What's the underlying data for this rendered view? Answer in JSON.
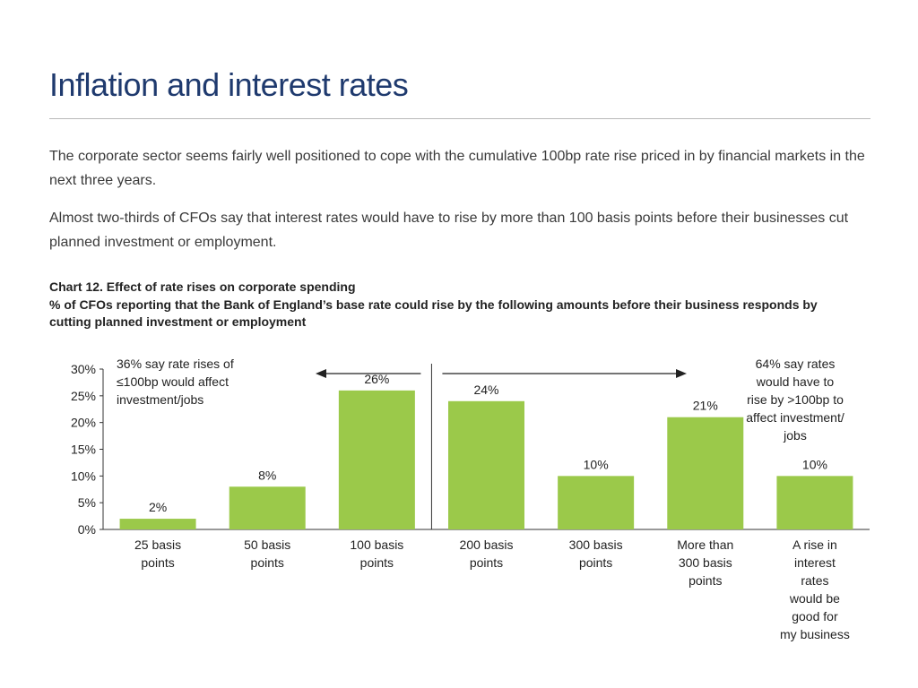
{
  "page": {
    "title": "Inflation and interest rates",
    "paragraphs": [
      "The corporate sector seems fairly well positioned to cope with the cumulative 100bp rate rise priced in by financial markets in the next three years.",
      "Almost two-thirds of CFOs say that interest rates would have to rise by more than 100 basis points before their businesses cut planned investment or employment."
    ]
  },
  "chart_data": {
    "type": "bar",
    "title": "Chart 12. Effect of rate rises on corporate spending",
    "subtitle": "% of CFOs reporting that the Bank of England’s base rate could rise by the following amounts before their business responds by cutting planned investment or employment",
    "categories": [
      [
        "25 basis",
        "points"
      ],
      [
        "50 basis",
        "points"
      ],
      [
        "100 basis",
        "points"
      ],
      [
        "200 basis",
        "points"
      ],
      [
        "300 basis",
        "points"
      ],
      [
        "More than",
        "300 basis",
        "points"
      ],
      [
        "A rise in",
        "interest",
        "rates",
        "would be",
        "good for",
        "my business"
      ]
    ],
    "values": [
      2,
      8,
      26,
      24,
      10,
      21,
      10
    ],
    "value_labels": [
      "2%",
      "8%",
      "26%",
      "24%",
      "10%",
      "21%",
      "10%"
    ],
    "ylim": [
      0,
      30
    ],
    "yticks": [
      0,
      5,
      10,
      15,
      20,
      25,
      30
    ],
    "ytick_labels": [
      "0%",
      "5%",
      "10%",
      "15%",
      "20%",
      "25%",
      "30%"
    ],
    "bar_color": "#9bc94a",
    "grid": false,
    "annotations": {
      "left": [
        "36% say rate rises of",
        "≤100bp would affect",
        "investment/jobs"
      ],
      "right": [
        "64% say rates",
        "would have to",
        "rise by >100bp to",
        "affect investment/",
        "jobs"
      ]
    }
  },
  "colors": {
    "title": "#1f3a6e",
    "bar": "#9bc94a",
    "rule": "#b9b9b9"
  }
}
